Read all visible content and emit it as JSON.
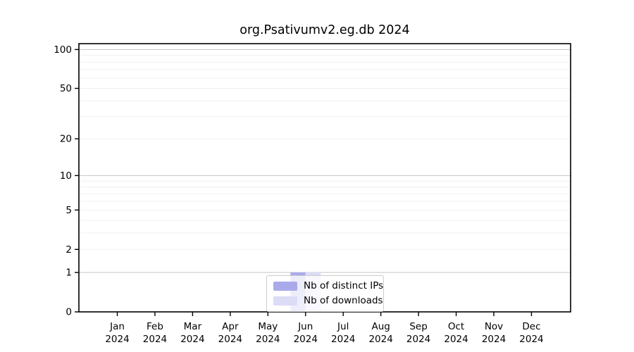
{
  "chart_data": {
    "type": "bar",
    "title": "org.Psativumv2.eg.db 2024",
    "categories": [
      {
        "month": "Jan",
        "year": "2024"
      },
      {
        "month": "Feb",
        "year": "2024"
      },
      {
        "month": "Mar",
        "year": "2024"
      },
      {
        "month": "Apr",
        "year": "2024"
      },
      {
        "month": "May",
        "year": "2024"
      },
      {
        "month": "Jun",
        "year": "2024"
      },
      {
        "month": "Jul",
        "year": "2024"
      },
      {
        "month": "Aug",
        "year": "2024"
      },
      {
        "month": "Sep",
        "year": "2024"
      },
      {
        "month": "Oct",
        "year": "2024"
      },
      {
        "month": "Nov",
        "year": "2024"
      },
      {
        "month": "Dec",
        "year": "2024"
      }
    ],
    "series": [
      {
        "name": "Nb of distinct IPs",
        "color": "#aaaaeb",
        "values": [
          0,
          0,
          0,
          0,
          0,
          1,
          0,
          0,
          0,
          0,
          0,
          0
        ]
      },
      {
        "name": "Nb of downloads",
        "color": "#dcdcf7",
        "values": [
          0,
          0,
          0,
          0,
          0,
          1,
          0,
          0,
          0,
          0,
          0,
          0
        ]
      }
    ],
    "y_axis": {
      "scale": "log1p",
      "ticks": [
        0,
        1,
        2,
        5,
        10,
        20,
        50,
        100
      ],
      "gridlines_major": [
        1,
        10,
        100
      ],
      "gridlines_minor": [
        2,
        3,
        4,
        5,
        6,
        7,
        8,
        9,
        20,
        30,
        40,
        50,
        60,
        70,
        80,
        90
      ],
      "top_value": 111,
      "ylim": [
        0,
        111
      ]
    },
    "xlabel": "",
    "ylabel": "",
    "legend": {
      "position": "lower center"
    },
    "colors": {
      "grid_major": "#c4c4c4",
      "grid_minor": "#efefef",
      "axis": "#000000",
      "text": "#000000",
      "background": "#ffffff"
    }
  }
}
